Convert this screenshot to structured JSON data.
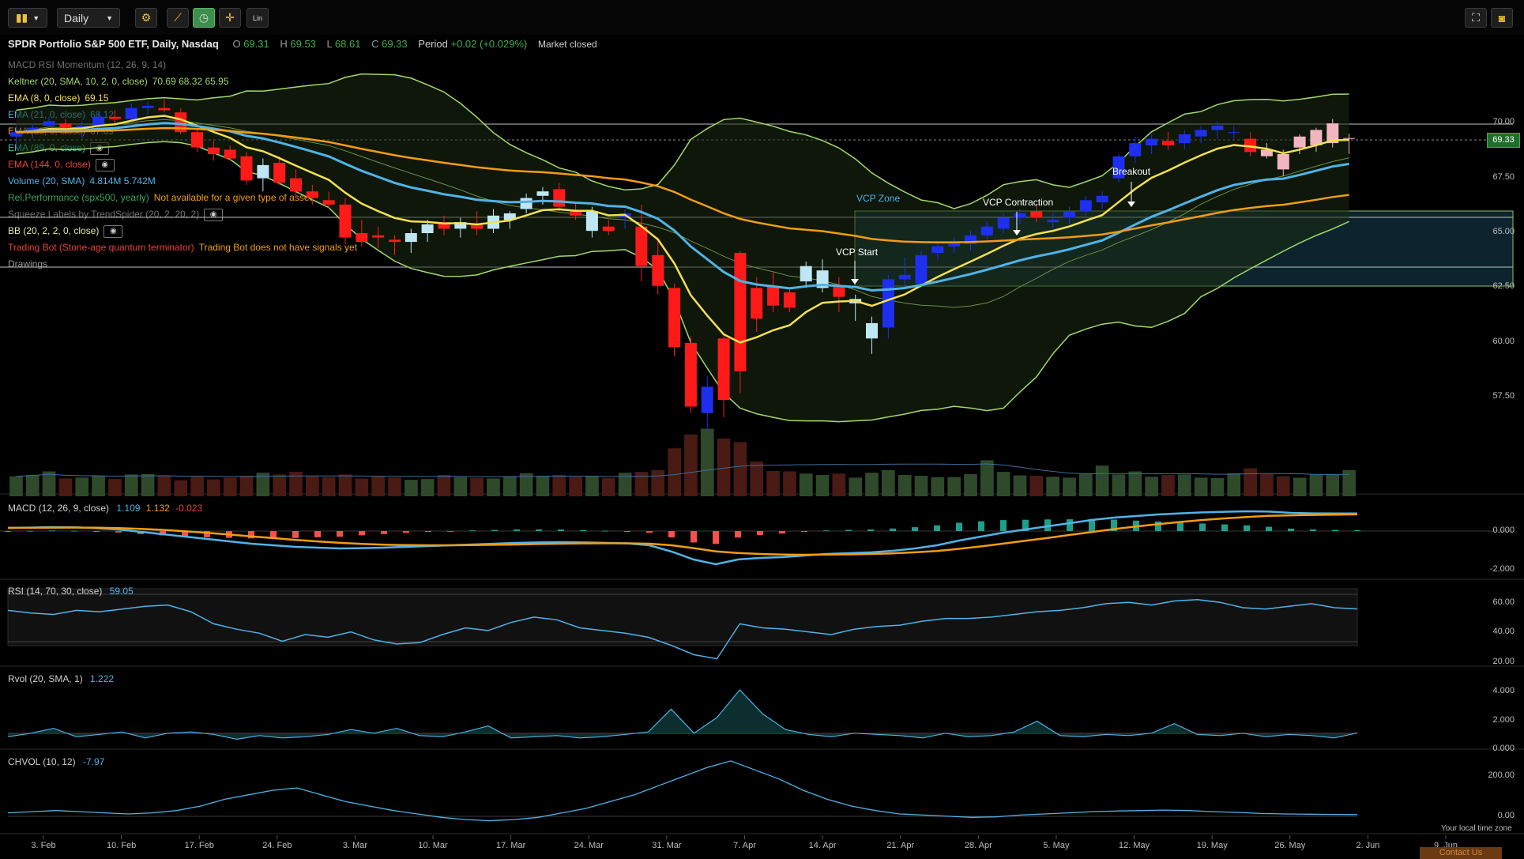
{
  "toolbar": {
    "timeframe": "Daily",
    "scale_label": "Lin"
  },
  "header": {
    "title": "SPDR Portfolio S&P 500 ETF, Daily, Nasdaq",
    "o_label": "O",
    "o_value": "69.31",
    "h_label": "H",
    "h_value": "69.53",
    "l_label": "L",
    "l_value": "68.61",
    "c_label": "C",
    "c_value": "69.33",
    "period_label": "Period",
    "period_value": "+0.02 (+0.029%)",
    "market_status": "Market closed"
  },
  "overlays": [
    {
      "label": "MACD RSI Momentum (12, 26, 9, 14)",
      "values": "",
      "color": "#6f6f6f"
    },
    {
      "label": "Keltner (20, SMA, 10, 2, 0, close)",
      "values": "70.69  68.32  65.95",
      "color": "#a5d86a"
    },
    {
      "label": "EMA (8, 0, close)",
      "values": "69.15",
      "color": "#f4e04d"
    },
    {
      "label": "EMA (21, 0, close)",
      "values": "68.12",
      "color": "#4fb3e8"
    },
    {
      "label": "EMA (55, 0, close)",
      "values": "67.09",
      "color": "#f39c12"
    },
    {
      "label": "EMA (89, 0, close)",
      "values": "",
      "color": "#27c4a5"
    },
    {
      "label": "EMA (144, 0, close)",
      "values": "",
      "color": "#e8413a"
    },
    {
      "label": "Volume (20, SMA)",
      "values": "4.814M  5.742M",
      "color": "#4fb3e8"
    },
    {
      "label": "Rel.Performance (spx500, yearly)",
      "values": "Not available for a given type of asset",
      "color": "#3aa55a"
    },
    {
      "label": "Squeeze Labels by TrendSpider (20, 2, 20, 2)",
      "values": "",
      "color": "#6f6f6f"
    },
    {
      "label": "BB (20, 2, 2, 0, close)",
      "values": "",
      "color": "#e9e9a0"
    },
    {
      "label": "Trading Bot (Stone-age quantum terminator)",
      "values": "Trading Bot does not have signals yet",
      "color": "#e8413a"
    },
    {
      "label": "Drawings",
      "values": "",
      "color": "#9a9a9a"
    }
  ],
  "annotations": {
    "vcp_zone": "VCP Zone",
    "vcp_start": "VCP Start",
    "vcp_contraction": "VCP Contraction",
    "breakout": "Breakout"
  },
  "price_axis": {
    "ticks": [
      "70.00",
      "67.50",
      "65.00",
      "62.50",
      "60.00",
      "57.50"
    ],
    "last_price": "69.33"
  },
  "macd": {
    "label": "MACD (12, 26, 9, close)",
    "v1": "1.109",
    "v2": "1.132",
    "v3": "-0.023",
    "ticks": [
      "0.000",
      "-2.000"
    ]
  },
  "rsi": {
    "label": "RSI (14, 70, 30, close)",
    "value": "59.05",
    "ticks": [
      "60.00",
      "40.00",
      "20.00"
    ]
  },
  "rvol": {
    "label": "Rvol (20, SMA, 1)",
    "value": "1.222",
    "ticks": [
      "4.000",
      "2.000",
      "0.000"
    ]
  },
  "chvol": {
    "label": "CHVOL (10, 12)",
    "value": "-7.97",
    "ticks": [
      "200.00",
      "0.00"
    ]
  },
  "x_axis": {
    "labels": [
      "3. Feb",
      "10. Feb",
      "17. Feb",
      "24. Feb",
      "3. Mar",
      "10. Mar",
      "17. Mar",
      "24. Mar",
      "31. Mar",
      "7. Apr",
      "14. Apr",
      "21. Apr",
      "28. Apr",
      "5. May",
      "12. May",
      "19. May",
      "26. May",
      "2. Jun",
      "9. Jun"
    ],
    "timezone": "Your local time zone",
    "contact": "Contact Us"
  },
  "chart_data": {
    "type": "candlestick",
    "title": "SPDR Portfolio S&P 500 ETF, Daily, Nasdaq",
    "candles": [
      {
        "o": 69.4,
        "h": 69.9,
        "l": 68.8,
        "c": 69.6
      },
      {
        "o": 69.6,
        "h": 70.0,
        "l": 69.3,
        "c": 69.8
      },
      {
        "o": 69.9,
        "h": 70.3,
        "l": 69.6,
        "c": 70.1
      },
      {
        "o": 70.0,
        "h": 70.2,
        "l": 69.5,
        "c": 69.7
      },
      {
        "o": 69.6,
        "h": 70.1,
        "l": 69.3,
        "c": 69.9
      },
      {
        "o": 69.9,
        "h": 70.5,
        "l": 69.7,
        "c": 70.3
      },
      {
        "o": 70.3,
        "h": 70.6,
        "l": 70.0,
        "c": 70.2
      },
      {
        "o": 70.2,
        "h": 70.9,
        "l": 70.0,
        "c": 70.7
      },
      {
        "o": 70.7,
        "h": 71.0,
        "l": 70.4,
        "c": 70.8
      },
      {
        "o": 70.7,
        "h": 71.1,
        "l": 70.5,
        "c": 70.6
      },
      {
        "o": 70.5,
        "h": 70.7,
        "l": 69.5,
        "c": 69.6
      },
      {
        "o": 69.6,
        "h": 69.8,
        "l": 68.7,
        "c": 68.9
      },
      {
        "o": 68.9,
        "h": 69.2,
        "l": 68.3,
        "c": 68.6
      },
      {
        "o": 68.8,
        "h": 69.0,
        "l": 68.3,
        "c": 68.4
      },
      {
        "o": 68.5,
        "h": 68.7,
        "l": 67.2,
        "c": 67.4
      },
      {
        "o": 67.5,
        "h": 68.4,
        "l": 66.9,
        "c": 68.1
      },
      {
        "o": 68.2,
        "h": 68.5,
        "l": 67.2,
        "c": 67.3
      },
      {
        "o": 67.5,
        "h": 67.9,
        "l": 66.6,
        "c": 66.9
      },
      {
        "o": 66.9,
        "h": 67.2,
        "l": 66.3,
        "c": 66.6
      },
      {
        "o": 66.5,
        "h": 66.9,
        "l": 66.1,
        "c": 66.3
      },
      {
        "o": 66.3,
        "h": 66.6,
        "l": 64.5,
        "c": 64.8
      },
      {
        "o": 65.0,
        "h": 65.6,
        "l": 64.4,
        "c": 64.6
      },
      {
        "o": 64.9,
        "h": 65.3,
        "l": 64.3,
        "c": 64.8
      },
      {
        "o": 64.7,
        "h": 64.9,
        "l": 64.0,
        "c": 64.6
      },
      {
        "o": 64.6,
        "h": 65.2,
        "l": 64.1,
        "c": 65.0
      },
      {
        "o": 65.0,
        "h": 65.6,
        "l": 64.6,
        "c": 65.4
      },
      {
        "o": 65.5,
        "h": 65.8,
        "l": 64.9,
        "c": 65.2
      },
      {
        "o": 65.2,
        "h": 65.7,
        "l": 64.8,
        "c": 65.5
      },
      {
        "o": 65.4,
        "h": 66.0,
        "l": 64.9,
        "c": 65.2
      },
      {
        "o": 65.2,
        "h": 66.1,
        "l": 65.0,
        "c": 65.8
      },
      {
        "o": 65.6,
        "h": 66.0,
        "l": 65.2,
        "c": 65.9
      },
      {
        "o": 66.1,
        "h": 66.8,
        "l": 65.9,
        "c": 66.6
      },
      {
        "o": 66.7,
        "h": 67.1,
        "l": 66.3,
        "c": 66.9
      },
      {
        "o": 67.0,
        "h": 67.3,
        "l": 66.0,
        "c": 66.2
      },
      {
        "o": 66.0,
        "h": 66.4,
        "l": 65.6,
        "c": 65.8
      },
      {
        "o": 65.1,
        "h": 66.2,
        "l": 64.8,
        "c": 66.0
      },
      {
        "o": 65.3,
        "h": 65.6,
        "l": 64.9,
        "c": 65.1
      },
      {
        "o": 65.7,
        "h": 66.1,
        "l": 65.2,
        "c": 65.9
      },
      {
        "o": 65.3,
        "h": 66.3,
        "l": 62.8,
        "c": 63.5
      },
      {
        "o": 64.0,
        "h": 64.8,
        "l": 62.2,
        "c": 62.6
      },
      {
        "o": 62.5,
        "h": 62.7,
        "l": 59.4,
        "c": 59.8
      },
      {
        "o": 60.0,
        "h": 60.3,
        "l": 56.8,
        "c": 57.1
      },
      {
        "o": 56.8,
        "h": 58.5,
        "l": 56.0,
        "c": 58.0
      },
      {
        "o": 60.2,
        "h": 60.3,
        "l": 56.6,
        "c": 57.4
      },
      {
        "o": 64.1,
        "h": 64.2,
        "l": 57.7,
        "c": 58.7
      },
      {
        "o": 62.5,
        "h": 63.0,
        "l": 60.5,
        "c": 61.1
      },
      {
        "o": 62.6,
        "h": 63.2,
        "l": 61.4,
        "c": 61.7
      },
      {
        "o": 62.3,
        "h": 62.5,
        "l": 61.4,
        "c": 61.6
      },
      {
        "o": 62.8,
        "h": 63.7,
        "l": 62.5,
        "c": 63.5
      },
      {
        "o": 62.5,
        "h": 63.8,
        "l": 62.3,
        "c": 63.3
      },
      {
        "o": 62.6,
        "h": 63.0,
        "l": 61.4,
        "c": 62.1
      },
      {
        "o": 61.8,
        "h": 62.2,
        "l": 61.0,
        "c": 62.0
      },
      {
        "o": 60.2,
        "h": 61.2,
        "l": 59.5,
        "c": 60.9
      },
      {
        "o": 60.7,
        "h": 63.1,
        "l": 60.2,
        "c": 62.9
      },
      {
        "o": 62.9,
        "h": 63.9,
        "l": 62.5,
        "c": 63.1
      },
      {
        "o": 62.7,
        "h": 64.2,
        "l": 62.5,
        "c": 64.0
      },
      {
        "o": 64.1,
        "h": 64.6,
        "l": 63.8,
        "c": 64.4
      },
      {
        "o": 64.4,
        "h": 64.8,
        "l": 64.1,
        "c": 64.6
      },
      {
        "o": 64.5,
        "h": 65.1,
        "l": 64.2,
        "c": 64.9
      },
      {
        "o": 64.9,
        "h": 65.5,
        "l": 64.6,
        "c": 65.3
      },
      {
        "o": 65.2,
        "h": 65.9,
        "l": 65.0,
        "c": 65.7
      },
      {
        "o": 65.7,
        "h": 66.1,
        "l": 65.4,
        "c": 65.9
      },
      {
        "o": 66.0,
        "h": 66.3,
        "l": 65.5,
        "c": 65.7
      },
      {
        "o": 65.5,
        "h": 65.9,
        "l": 65.2,
        "c": 65.6
      },
      {
        "o": 65.7,
        "h": 66.2,
        "l": 65.4,
        "c": 66.0
      },
      {
        "o": 66.0,
        "h": 66.7,
        "l": 65.8,
        "c": 66.5
      },
      {
        "o": 66.4,
        "h": 66.9,
        "l": 66.1,
        "c": 66.7
      },
      {
        "o": 67.5,
        "h": 68.6,
        "l": 67.3,
        "c": 68.5
      },
      {
        "o": 68.5,
        "h": 69.4,
        "l": 68.2,
        "c": 69.1
      },
      {
        "o": 69.0,
        "h": 69.5,
        "l": 68.6,
        "c": 69.3
      },
      {
        "o": 69.2,
        "h": 69.6,
        "l": 68.8,
        "c": 69.0
      },
      {
        "o": 69.1,
        "h": 69.7,
        "l": 68.8,
        "c": 69.5
      },
      {
        "o": 69.4,
        "h": 69.9,
        "l": 69.1,
        "c": 69.7
      },
      {
        "o": 69.7,
        "h": 70.1,
        "l": 69.3,
        "c": 69.9
      },
      {
        "o": 69.6,
        "h": 69.9,
        "l": 69.3,
        "c": 69.6
      },
      {
        "o": 69.3,
        "h": 69.6,
        "l": 68.5,
        "c": 68.7
      },
      {
        "o": 68.8,
        "h": 69.1,
        "l": 68.4,
        "c": 68.5
      },
      {
        "o": 68.6,
        "h": 68.8,
        "l": 67.6,
        "c": 67.9
      },
      {
        "o": 68.9,
        "h": 69.5,
        "l": 68.6,
        "c": 69.4
      },
      {
        "o": 69.0,
        "h": 69.8,
        "l": 68.7,
        "c": 69.7
      },
      {
        "o": 69.1,
        "h": 70.2,
        "l": 68.9,
        "c": 70.0
      },
      {
        "o": 69.31,
        "h": 69.53,
        "l": 68.61,
        "c": 69.33
      }
    ],
    "volume_m": [
      4.5,
      4.8,
      5.6,
      4.0,
      4.2,
      4.6,
      3.9,
      4.9,
      5.0,
      4.7,
      3.6,
      4.4,
      3.8,
      4.2,
      4.6,
      5.3,
      4.9,
      5.5,
      4.5,
      4.3,
      4.9,
      4.0,
      4.6,
      4.2,
      3.7,
      3.9,
      4.8,
      4.3,
      4.1,
      4.0,
      4.5,
      5.2,
      4.6,
      4.8,
      4.4,
      4.6,
      4.1,
      5.3,
      5.5,
      5.9,
      10.8,
      13.9,
      15.2,
      13.0,
      12.2,
      7.8,
      5.7,
      5.6,
      5.1,
      4.8,
      5.1,
      4.2,
      5.3,
      5.9,
      4.8,
      4.6,
      4.3,
      4.3,
      5.0,
      8.1,
      5.5,
      4.7,
      4.6,
      4.4,
      4.2,
      5.0,
      6.9,
      4.9,
      5.6,
      4.4,
      4.8,
      4.9,
      4.2,
      4.1,
      5.2,
      6.3,
      5.0,
      4.5,
      4.2,
      4.9,
      4.8,
      5.9
    ],
    "macd": [
      0.2,
      0.22,
      0.25,
      0.24,
      0.18,
      0.1,
      -0.05,
      -0.2,
      -0.35,
      -0.5,
      -0.65,
      -0.8,
      -0.9,
      -1.0,
      -1.05,
      -1.1,
      -1.08,
      -1.05,
      -1.0,
      -0.95,
      -0.9,
      -0.85,
      -0.8,
      -0.75,
      -0.72,
      -0.7,
      -0.72,
      -0.75,
      -0.78,
      -0.9,
      -1.3,
      -1.8,
      -2.1,
      -1.8,
      -1.7,
      -1.65,
      -1.55,
      -1.45,
      -1.4,
      -1.35,
      -1.25,
      -1.1,
      -0.9,
      -0.6,
      -0.35,
      -0.1,
      0.1,
      0.3,
      0.5,
      0.7,
      0.85,
      0.95,
      1.05,
      1.12,
      1.18,
      1.22,
      1.25,
      1.23,
      1.15,
      1.12,
      1.11,
      1.109
    ],
    "rsi": [
      58,
      56,
      55,
      58,
      57,
      59,
      61,
      62,
      57,
      48,
      44,
      41,
      35,
      40,
      38,
      42,
      36,
      33,
      34,
      40,
      45,
      43,
      49,
      53,
      51,
      45,
      43,
      41,
      38,
      32,
      25,
      22,
      48,
      45,
      44,
      42,
      40,
      44,
      46,
      47,
      50,
      52,
      52,
      53,
      55,
      57,
      58,
      60,
      63,
      64,
      62,
      65,
      66,
      64,
      60,
      59,
      61,
      63,
      60,
      59.05
    ],
    "rvol": [
      0.9,
      1.2,
      1.6,
      0.9,
      1.1,
      1.3,
      0.8,
      1.2,
      1.3,
      1.1,
      0.7,
      1.0,
      0.8,
      0.9,
      1.1,
      1.5,
      1.2,
      1.6,
      1.0,
      0.9,
      1.3,
      1.8,
      0.8,
      0.9,
      1.0,
      0.8,
      0.9,
      1.1,
      1.3,
      3.2,
      1.2,
      2.5,
      4.8,
      2.8,
      1.5,
      1.1,
      0.9,
      1.2,
      1.1,
      1.0,
      0.8,
      1.2,
      0.9,
      1.0,
      1.3,
      2.2,
      1.0,
      0.9,
      1.1,
      1.0,
      1.2,
      2.0,
      1.1,
      1.0,
      1.2,
      0.9,
      1.1,
      1.0,
      0.8,
      1.222
    ],
    "chvol": [
      0,
      5,
      10,
      5,
      0,
      -5,
      0,
      10,
      30,
      60,
      80,
      100,
      110,
      80,
      50,
      30,
      10,
      -5,
      -20,
      -30,
      -35,
      -30,
      -20,
      0,
      20,
      50,
      80,
      120,
      160,
      200,
      230,
      190,
      150,
      100,
      60,
      30,
      10,
      -5,
      -10,
      -15,
      -20,
      -18,
      -10,
      -5,
      0,
      5,
      8,
      10,
      12,
      10,
      5,
      2,
      -3,
      -5,
      -6,
      -7,
      -7.97
    ],
    "ylim": [
      56,
      72
    ]
  }
}
